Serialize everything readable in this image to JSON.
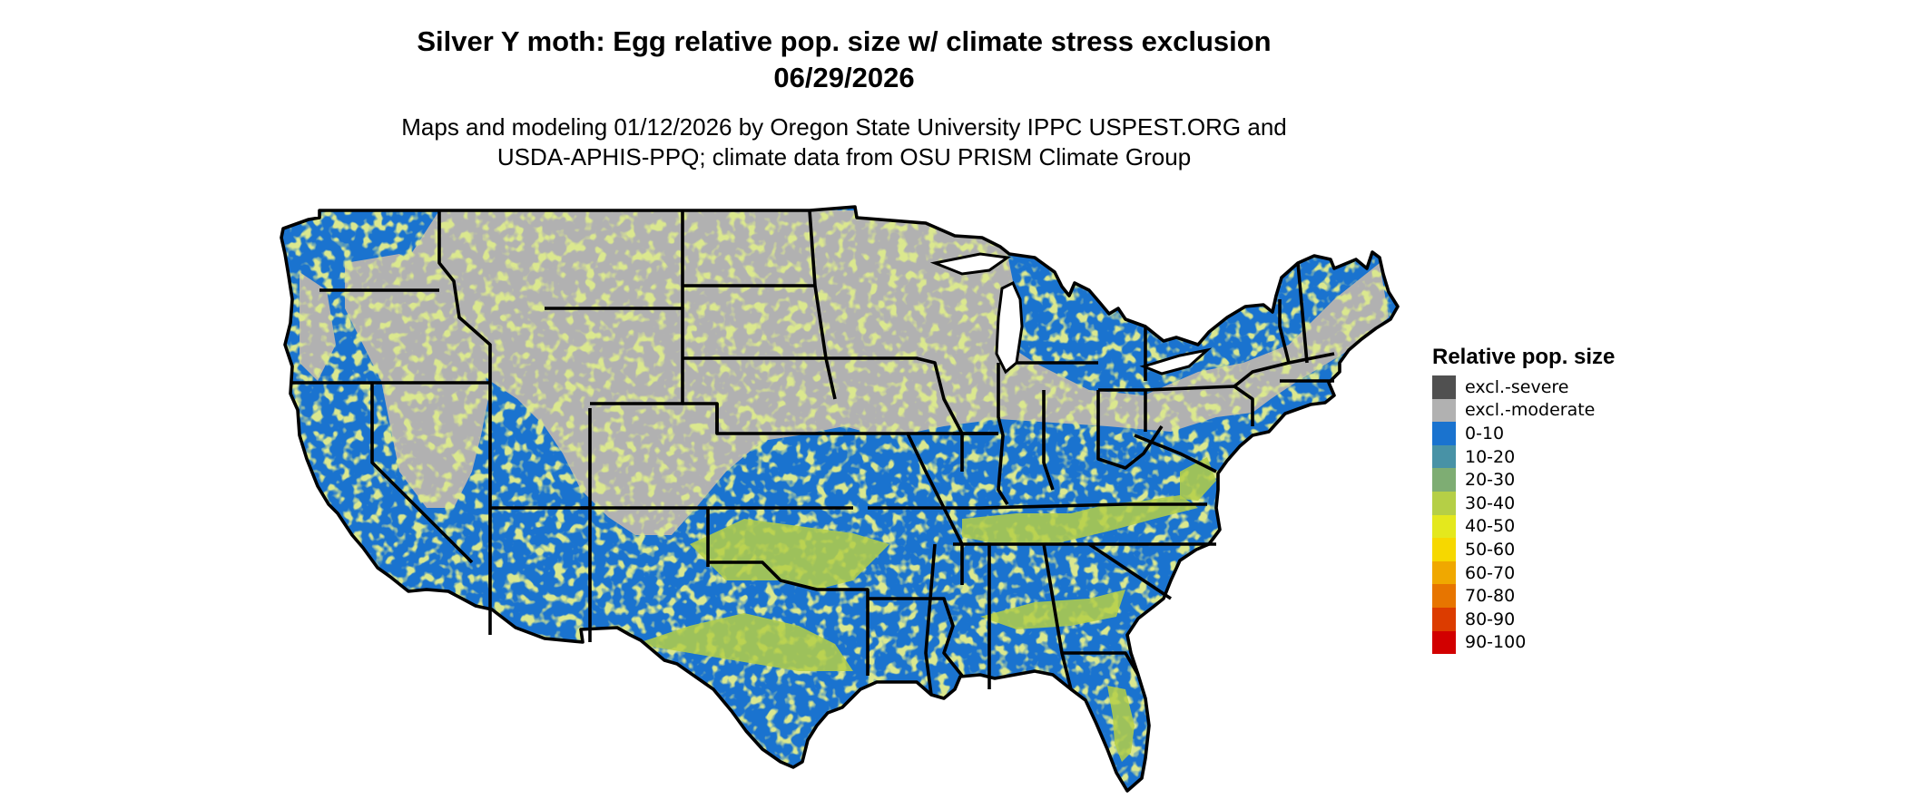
{
  "header": {
    "title_line1": "Silver Y moth: Egg relative pop. size w/ climate stress exclusion",
    "title_line2": "06/29/2026",
    "subtitle_line1": "Maps and modeling 01/12/2026 by Oregon State University IPPC USPEST.ORG and",
    "subtitle_line2": "USDA-APHIS-PPQ; climate data from OSU PRISM Climate Group"
  },
  "legend": {
    "title": "Relative pop. size",
    "items": [
      {
        "label": "excl.-severe",
        "color": "#505050"
      },
      {
        "label": "excl.-moderate",
        "color": "#b1b1b1"
      },
      {
        "label": "0-10",
        "color": "#1a73cf"
      },
      {
        "label": "10-20",
        "color": "#4892a6"
      },
      {
        "label": "20-30",
        "color": "#7ead73"
      },
      {
        "label": "30-40",
        "color": "#b5cf46"
      },
      {
        "label": "40-50",
        "color": "#e4e81d"
      },
      {
        "label": "50-60",
        "color": "#f6d800"
      },
      {
        "label": "60-70",
        "color": "#f0a800"
      },
      {
        "label": "70-80",
        "color": "#e77500"
      },
      {
        "label": "80-90",
        "color": "#dc3c00"
      },
      {
        "label": "90-100",
        "color": "#d20000"
      }
    ]
  },
  "map": {
    "region": "Contiguous United States",
    "colors": {
      "excluded_moderate": "#b1b1b1",
      "low": "#1a73cf",
      "mid": "#b5cf46",
      "border": "#000000"
    }
  }
}
